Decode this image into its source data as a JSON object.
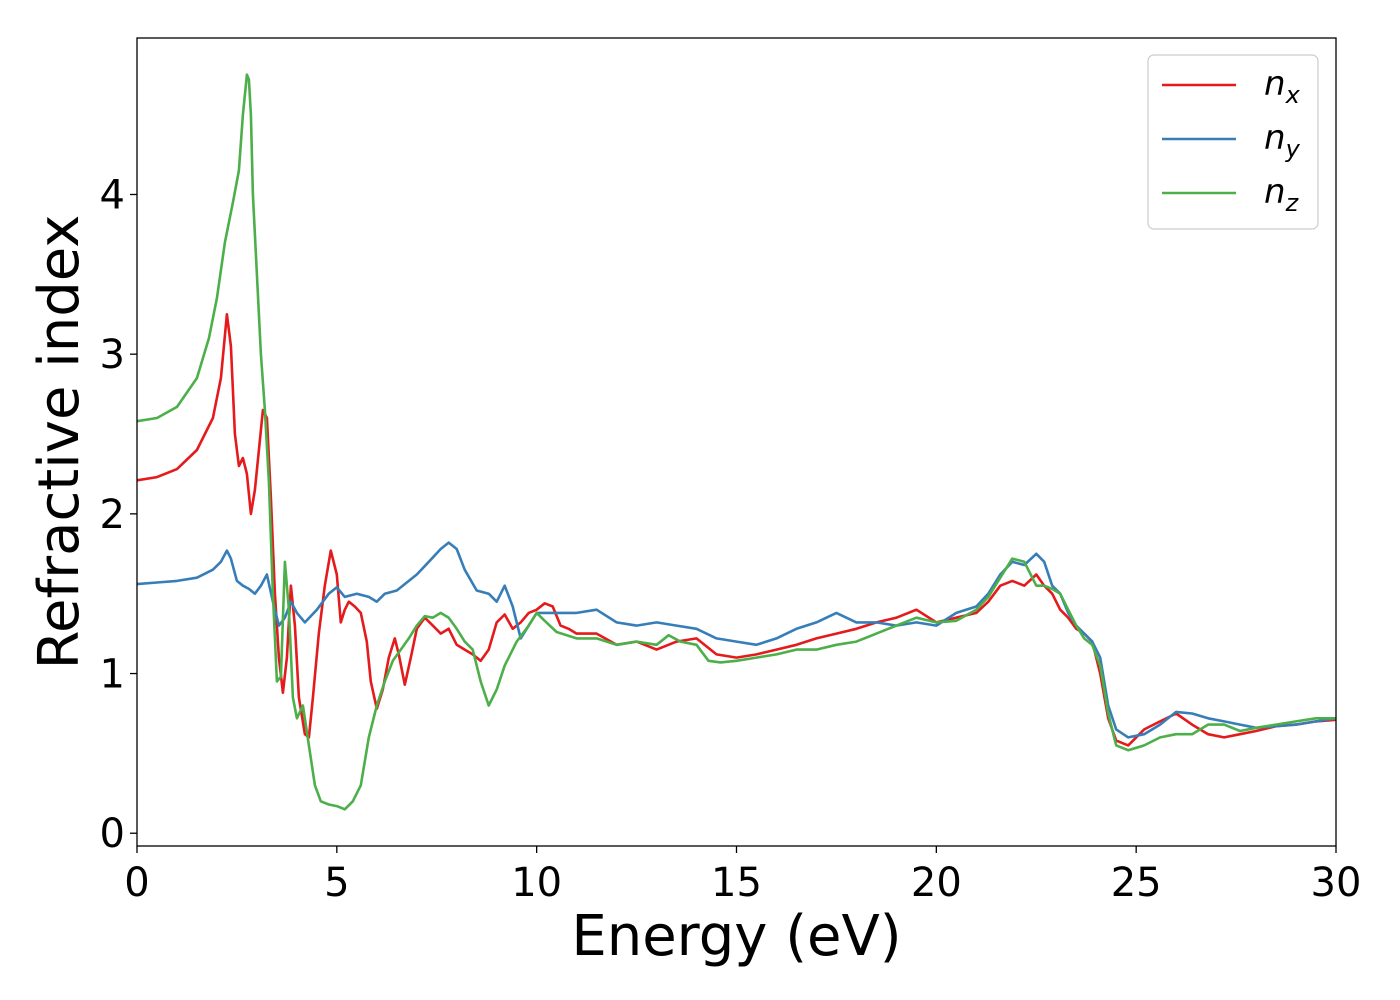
{
  "chart_data": {
    "type": "line",
    "xlabel": "Energy (eV)",
    "ylabel": "Refractive index",
    "xlim": [
      0,
      30
    ],
    "ylim": [
      -0.08,
      4.98
    ],
    "xticks": [
      "0",
      "5",
      "10",
      "15",
      "20",
      "25",
      "30"
    ],
    "yticks": [
      "0",
      "1",
      "2",
      "3",
      "4"
    ],
    "grid": false,
    "legend_position": "top-right",
    "series": [
      {
        "name": "n",
        "subscript": "x",
        "color": "#e41a1c",
        "x": [
          0,
          0.5,
          1.0,
          1.5,
          1.9,
          2.1,
          2.25,
          2.35,
          2.45,
          2.55,
          2.65,
          2.75,
          2.85,
          2.95,
          3.05,
          3.15,
          3.25,
          3.35,
          3.45,
          3.55,
          3.65,
          3.75,
          3.85,
          3.95,
          4.05,
          4.2,
          4.3,
          4.4,
          4.55,
          4.7,
          4.85,
          5.0,
          5.1,
          5.2,
          5.3,
          5.45,
          5.6,
          5.75,
          5.85,
          6.0,
          6.15,
          6.3,
          6.45,
          6.55,
          6.7,
          6.85,
          7.0,
          7.2,
          7.4,
          7.6,
          7.8,
          8.0,
          8.2,
          8.4,
          8.6,
          8.8,
          9.0,
          9.2,
          9.4,
          9.6,
          9.8,
          10.0,
          10.2,
          10.4,
          10.6,
          10.8,
          11.0,
          11.5,
          12.0,
          12.5,
          13.0,
          13.5,
          14.0,
          14.5,
          15.0,
          15.5,
          16.0,
          16.5,
          17.0,
          17.5,
          18.0,
          18.5,
          19.0,
          19.5,
          20.0,
          20.5,
          21.0,
          21.3,
          21.6,
          21.9,
          22.2,
          22.5,
          22.7,
          22.9,
          23.1,
          23.3,
          23.5,
          23.7,
          23.9,
          24.1,
          24.3,
          24.5,
          24.8,
          25.2,
          25.6,
          26.0,
          26.4,
          26.8,
          27.2,
          27.6,
          28.0,
          28.5,
          29.0,
          29.5,
          30.0
        ],
        "y": [
          2.21,
          2.23,
          2.28,
          2.4,
          2.6,
          2.85,
          3.25,
          3.05,
          2.5,
          2.3,
          2.35,
          2.25,
          2.0,
          2.15,
          2.4,
          2.65,
          2.6,
          2.1,
          1.5,
          1.1,
          0.88,
          1.1,
          1.55,
          1.3,
          0.85,
          0.62,
          0.6,
          0.85,
          1.25,
          1.55,
          1.77,
          1.62,
          1.32,
          1.4,
          1.45,
          1.42,
          1.38,
          1.2,
          0.95,
          0.78,
          0.9,
          1.1,
          1.22,
          1.12,
          0.93,
          1.1,
          1.28,
          1.35,
          1.3,
          1.25,
          1.28,
          1.18,
          1.15,
          1.12,
          1.08,
          1.15,
          1.32,
          1.37,
          1.28,
          1.32,
          1.38,
          1.4,
          1.44,
          1.42,
          1.3,
          1.28,
          1.25,
          1.25,
          1.18,
          1.2,
          1.15,
          1.2,
          1.22,
          1.12,
          1.1,
          1.12,
          1.15,
          1.18,
          1.22,
          1.25,
          1.28,
          1.32,
          1.35,
          1.4,
          1.32,
          1.35,
          1.38,
          1.45,
          1.55,
          1.58,
          1.55,
          1.62,
          1.55,
          1.5,
          1.4,
          1.35,
          1.28,
          1.25,
          1.2,
          1.0,
          0.72,
          0.58,
          0.55,
          0.65,
          0.7,
          0.75,
          0.68,
          0.62,
          0.6,
          0.62,
          0.64,
          0.67,
          0.68,
          0.7,
          0.71
        ]
      },
      {
        "name": "n",
        "subscript": "y",
        "color": "#377eb8",
        "x": [
          0,
          0.5,
          1.0,
          1.5,
          1.9,
          2.1,
          2.25,
          2.35,
          2.5,
          2.65,
          2.8,
          2.95,
          3.1,
          3.25,
          3.4,
          3.55,
          3.7,
          3.85,
          4.0,
          4.2,
          4.5,
          4.8,
          5.0,
          5.2,
          5.5,
          5.8,
          6.0,
          6.2,
          6.5,
          6.8,
          7.0,
          7.3,
          7.6,
          7.8,
          8.0,
          8.2,
          8.5,
          8.8,
          9.0,
          9.2,
          9.4,
          9.6,
          9.8,
          10.0,
          10.5,
          11.0,
          11.5,
          12.0,
          12.5,
          13.0,
          13.5,
          14.0,
          14.5,
          15.0,
          15.5,
          16.0,
          16.5,
          17.0,
          17.5,
          18.0,
          18.5,
          19.0,
          19.5,
          20.0,
          20.5,
          21.0,
          21.3,
          21.6,
          21.9,
          22.2,
          22.5,
          22.7,
          22.9,
          23.1,
          23.3,
          23.5,
          23.7,
          23.9,
          24.1,
          24.3,
          24.5,
          24.8,
          25.2,
          25.6,
          26.0,
          26.4,
          26.8,
          27.2,
          27.6,
          28.0,
          28.5,
          29.0,
          29.5,
          30.0
        ],
        "y": [
          1.56,
          1.57,
          1.58,
          1.6,
          1.65,
          1.7,
          1.77,
          1.72,
          1.58,
          1.55,
          1.53,
          1.5,
          1.55,
          1.62,
          1.45,
          1.3,
          1.35,
          1.45,
          1.38,
          1.32,
          1.4,
          1.5,
          1.54,
          1.48,
          1.5,
          1.48,
          1.45,
          1.5,
          1.52,
          1.58,
          1.62,
          1.7,
          1.78,
          1.82,
          1.78,
          1.65,
          1.52,
          1.5,
          1.45,
          1.55,
          1.42,
          1.22,
          1.3,
          1.38,
          1.38,
          1.38,
          1.4,
          1.32,
          1.3,
          1.32,
          1.3,
          1.28,
          1.22,
          1.2,
          1.18,
          1.22,
          1.28,
          1.32,
          1.38,
          1.32,
          1.32,
          1.3,
          1.32,
          1.3,
          1.38,
          1.42,
          1.5,
          1.62,
          1.7,
          1.68,
          1.75,
          1.7,
          1.55,
          1.5,
          1.38,
          1.3,
          1.25,
          1.2,
          1.1,
          0.8,
          0.65,
          0.6,
          0.62,
          0.68,
          0.76,
          0.75,
          0.72,
          0.7,
          0.68,
          0.66,
          0.67,
          0.68,
          0.7,
          0.72
        ]
      },
      {
        "name": "n",
        "subscript": "z",
        "color": "#4daf4a",
        "x": [
          0,
          0.5,
          1.0,
          1.5,
          1.8,
          2.0,
          2.2,
          2.4,
          2.55,
          2.65,
          2.75,
          2.8,
          2.85,
          2.9,
          3.0,
          3.1,
          3.2,
          3.3,
          3.4,
          3.5,
          3.6,
          3.7,
          3.8,
          3.9,
          4.0,
          4.15,
          4.3,
          4.45,
          4.6,
          4.8,
          5.0,
          5.2,
          5.4,
          5.6,
          5.8,
          6.0,
          6.2,
          6.4,
          6.6,
          6.8,
          7.0,
          7.2,
          7.4,
          7.6,
          7.8,
          8.0,
          8.2,
          8.4,
          8.6,
          8.8,
          9.0,
          9.2,
          9.5,
          9.8,
          10.0,
          10.2,
          10.5,
          11.0,
          11.5,
          12.0,
          12.5,
          13.0,
          13.3,
          13.6,
          14.0,
          14.3,
          14.6,
          15.0,
          15.5,
          16.0,
          16.5,
          17.0,
          17.5,
          18.0,
          18.5,
          19.0,
          19.5,
          20.0,
          20.5,
          21.0,
          21.3,
          21.6,
          21.9,
          22.2,
          22.5,
          22.7,
          22.9,
          23.1,
          23.3,
          23.5,
          23.7,
          23.9,
          24.1,
          24.3,
          24.5,
          24.8,
          25.2,
          25.6,
          26.0,
          26.4,
          26.8,
          27.2,
          27.6,
          28.0,
          28.5,
          29.0,
          29.5,
          30.0
        ],
        "y": [
          2.58,
          2.6,
          2.67,
          2.85,
          3.1,
          3.35,
          3.7,
          3.95,
          4.15,
          4.5,
          4.75,
          4.72,
          4.5,
          4.0,
          3.5,
          3.0,
          2.65,
          2.2,
          1.5,
          0.95,
          0.98,
          1.7,
          1.4,
          0.85,
          0.72,
          0.8,
          0.55,
          0.3,
          0.2,
          0.18,
          0.17,
          0.15,
          0.2,
          0.3,
          0.6,
          0.8,
          0.95,
          1.08,
          1.15,
          1.22,
          1.3,
          1.36,
          1.35,
          1.38,
          1.35,
          1.28,
          1.2,
          1.15,
          0.95,
          0.8,
          0.9,
          1.05,
          1.2,
          1.3,
          1.38,
          1.33,
          1.26,
          1.22,
          1.22,
          1.18,
          1.2,
          1.18,
          1.24,
          1.2,
          1.18,
          1.08,
          1.07,
          1.08,
          1.1,
          1.12,
          1.15,
          1.15,
          1.18,
          1.2,
          1.25,
          1.3,
          1.35,
          1.32,
          1.33,
          1.4,
          1.48,
          1.6,
          1.72,
          1.7,
          1.55,
          1.55,
          1.53,
          1.5,
          1.4,
          1.3,
          1.22,
          1.18,
          1.05,
          0.75,
          0.55,
          0.52,
          0.55,
          0.6,
          0.62,
          0.62,
          0.68,
          0.68,
          0.64,
          0.66,
          0.68,
          0.7,
          0.72,
          0.72
        ]
      }
    ]
  }
}
